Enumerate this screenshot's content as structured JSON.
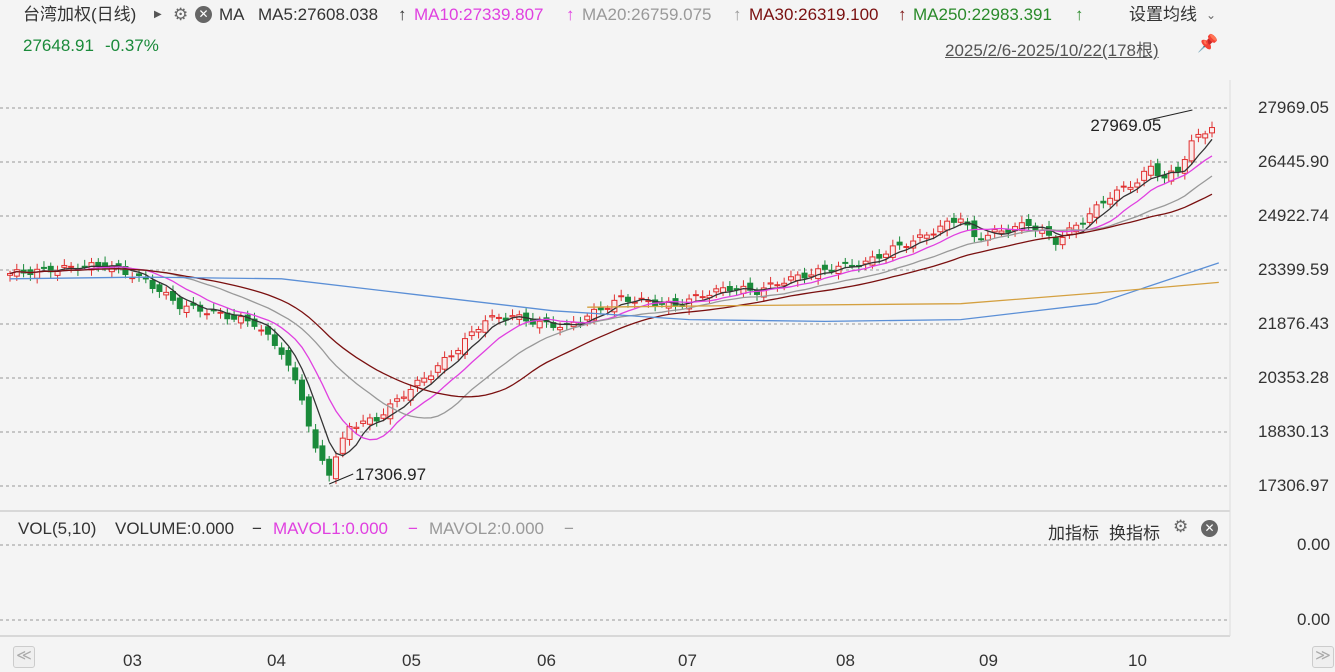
{
  "header": {
    "index_name": "台湾加权",
    "period": "(日线)",
    "expand_icon": "triangle-right-icon",
    "ma_label": "MA",
    "ma5": "MA5:27608.038",
    "ma10": "MA10:27339.807",
    "ma20": "MA20:26759.075",
    "ma30": "MA30:26319.100",
    "ma250": "MA250:22983.391",
    "arrow": "↑",
    "settings_label": "设置均线",
    "last_price": "27648.91",
    "change_pct": "-0.37%",
    "date_range": "2025/2/6-2025/10/22(178根)"
  },
  "volume_panel": {
    "vol_label": "VOL(5,10)",
    "volume": "VOLUME:0.000",
    "mavol1": "MAVOL1:0.000",
    "mavol2": "MAVOL2:0.000",
    "dash": "−",
    "add_indicator": "加指标",
    "switch_indicator": "换指标",
    "axis_top": "0.00",
    "axis_bottom": "0.00"
  },
  "nav": {
    "prev": "≪",
    "next": "≫"
  },
  "colors": {
    "ma5": "#333333",
    "ma10": "#e040e0",
    "ma20": "#999999",
    "ma30": "#7a1010",
    "ma250": "#2a8a2a",
    "ma250_line": "#5b8fd6",
    "ma120_line": "#d4a040",
    "up": "#e03030",
    "down": "#1a8a3a",
    "change": "#1a8a3a"
  },
  "chart_data": {
    "type": "candlestick",
    "title": "台湾加权 (日线)",
    "x_tick_labels": [
      "03",
      "04",
      "05",
      "06",
      "07",
      "08",
      "09",
      "10"
    ],
    "y_tick_labels": [
      "27969.05",
      "26445.90",
      "24922.74",
      "23399.59",
      "21876.43",
      "20353.28",
      "18830.13",
      "17306.97"
    ],
    "ylim": [
      17306.97,
      27969.05
    ],
    "annotations": [
      {
        "text": "27969.05",
        "value": 27969.05,
        "kind": "high"
      },
      {
        "text": "17306.97",
        "value": 17306.97,
        "kind": "low"
      }
    ],
    "grid": true,
    "close_anchors": [
      [
        0,
        23300
      ],
      [
        8,
        23450
      ],
      [
        14,
        23550
      ],
      [
        20,
        23100
      ],
      [
        25,
        22400
      ],
      [
        30,
        22200
      ],
      [
        36,
        21900
      ],
      [
        40,
        21100
      ],
      [
        43,
        19800
      ],
      [
        45,
        18300
      ],
      [
        47,
        17700
      ],
      [
        50,
        19000
      ],
      [
        54,
        19200
      ],
      [
        58,
        19900
      ],
      [
        62,
        20500
      ],
      [
        66,
        21200
      ],
      [
        70,
        22000
      ],
      [
        74,
        22100
      ],
      [
        78,
        21900
      ],
      [
        82,
        21800
      ],
      [
        86,
        22200
      ],
      [
        90,
        22600
      ],
      [
        94,
        22500
      ],
      [
        98,
        22400
      ],
      [
        102,
        22700
      ],
      [
        106,
        22900
      ],
      [
        110,
        22800
      ],
      [
        114,
        23100
      ],
      [
        118,
        23300
      ],
      [
        122,
        23500
      ],
      [
        126,
        23600
      ],
      [
        130,
        24000
      ],
      [
        134,
        24300
      ],
      [
        138,
        24700
      ],
      [
        140,
        24900
      ],
      [
        142,
        24300
      ],
      [
        146,
        24500
      ],
      [
        150,
        24700
      ],
      [
        154,
        24200
      ],
      [
        158,
        24800
      ],
      [
        162,
        25500
      ],
      [
        166,
        25900
      ],
      [
        168,
        26300
      ],
      [
        170,
        26000
      ],
      [
        172,
        26200
      ],
      [
        174,
        27000
      ],
      [
        176,
        27300
      ],
      [
        178,
        27650
      ]
    ],
    "ma_levels": {
      "MA5": 27608.038,
      "MA10": 27339.807,
      "MA20": 26759.075,
      "MA30": 26319.1,
      "MA250": 22983.391
    }
  }
}
